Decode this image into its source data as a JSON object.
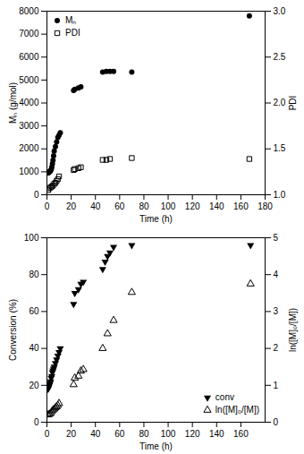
{
  "chart_data": [
    {
      "type": "scatter",
      "xlabel": "Time (h)",
      "ylabel": "Mₙ (g/mol)",
      "y2label": "PDI",
      "xlim": [
        0,
        180
      ],
      "xticks": [
        0,
        20,
        40,
        60,
        80,
        100,
        120,
        140,
        160,
        180
      ],
      "ylim": [
        0,
        8000
      ],
      "yticks": [
        0,
        1000,
        2000,
        3000,
        4000,
        5000,
        6000,
        7000,
        8000
      ],
      "y2lim": [
        1.0,
        3.0
      ],
      "y2ticks": [
        {
          "value": 1.0,
          "label": "1.0"
        },
        1.5,
        {
          "value": 2.0,
          "label": "2.0"
        },
        2.5,
        {
          "value": 3.0,
          "label": "3.0"
        }
      ],
      "grid": false,
      "legend": "upper left",
      "series": [
        {
          "name": "Mₙ",
          "color": "black",
          "marker": "filled circle",
          "x": [
            1,
            1.5,
            2,
            2.5,
            3,
            3.5,
            4,
            4.5,
            5,
            5.5,
            6,
            7,
            8,
            9,
            10,
            11,
            22,
            23,
            26,
            28,
            46,
            49,
            52,
            55,
            70,
            167
          ],
          "values": [
            950,
            980,
            1000,
            1010,
            1050,
            1100,
            1200,
            1350,
            1500,
            1700,
            1900,
            2100,
            2300,
            2500,
            2600,
            2700,
            4550,
            4600,
            4650,
            4700,
            5350,
            5380,
            5380,
            5380,
            5350,
            7800
          ]
        },
        {
          "name": "PDI",
          "color": "black",
          "marker": "open square",
          "axis": "y2",
          "x": [
            1,
            2,
            3,
            4,
            5,
            6,
            7,
            8,
            9,
            10,
            22,
            23,
            26,
            28,
            46,
            49,
            52,
            70,
            167
          ],
          "values": [
            1.05,
            1.07,
            1.08,
            1.09,
            1.1,
            1.12,
            1.13,
            1.15,
            1.17,
            1.2,
            1.27,
            1.28,
            1.29,
            1.3,
            1.38,
            1.38,
            1.39,
            1.4,
            1.39
          ]
        }
      ]
    },
    {
      "type": "scatter",
      "xlabel": "Time (h)",
      "ylabel": "Conversion (%)",
      "y2label": "ln([M]₀/[M])",
      "xlim": [
        0,
        180
      ],
      "xticks": [
        0,
        20,
        40,
        60,
        80,
        100,
        120,
        140,
        160
      ],
      "ylim": [
        0,
        100
      ],
      "yticks": [
        0,
        20,
        40,
        60,
        80,
        100
      ],
      "y2lim": [
        0,
        5
      ],
      "y2ticks": [
        0,
        1,
        2,
        3,
        4,
        5
      ],
      "grid": false,
      "legend": "lower right",
      "series": [
        {
          "name": "conv",
          "color": "black",
          "marker": "filled triangle-down",
          "x": [
            1,
            1.5,
            2,
            2.5,
            3,
            3.5,
            4,
            4.5,
            5,
            5.5,
            6,
            7,
            8,
            9,
            10,
            11,
            22,
            23,
            26,
            28,
            30,
            46,
            48,
            50,
            52,
            55,
            70,
            168
          ],
          "values": [
            18,
            19,
            20,
            21,
            22,
            24,
            25,
            27,
            28,
            29,
            30,
            32,
            34,
            36,
            38,
            40,
            64,
            70,
            72,
            75,
            76,
            83,
            87,
            90,
            92,
            95,
            96,
            96
          ]
        },
        {
          "name": "ln([M]₀/[M])",
          "color": "black",
          "marker": "open triangle-up",
          "axis": "y2",
          "x": [
            1,
            2,
            3,
            4,
            5,
            6,
            7,
            8,
            9,
            10,
            22,
            23,
            26,
            28,
            30,
            46,
            50,
            55,
            70,
            168
          ],
          "values": [
            0.2,
            0.22,
            0.24,
            0.29,
            0.33,
            0.36,
            0.39,
            0.42,
            0.46,
            0.51,
            1.02,
            1.2,
            1.25,
            1.39,
            1.43,
            2.0,
            2.4,
            2.76,
            3.52,
            3.75
          ]
        }
      ]
    }
  ]
}
